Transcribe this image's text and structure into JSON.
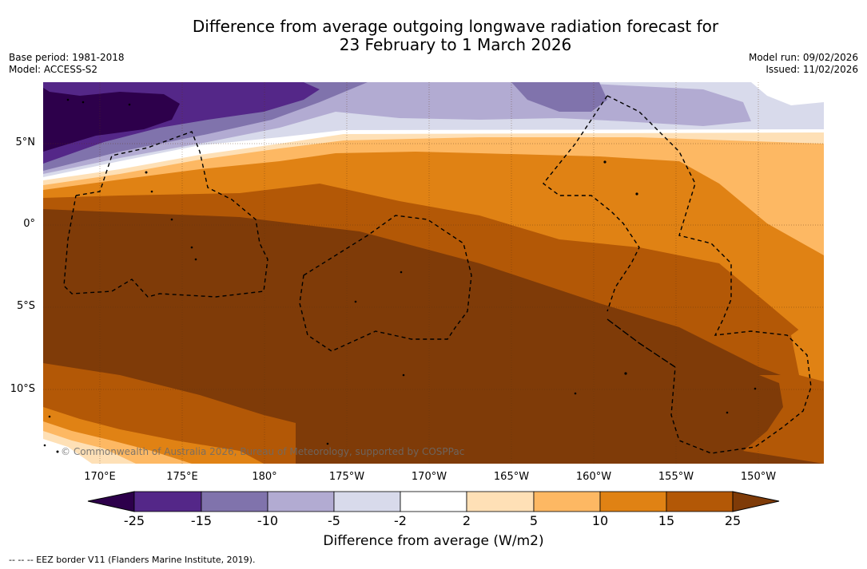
{
  "title": {
    "line1": "Difference from average outgoing longwave radiation forecast for",
    "line2": "23 February to 1 March 2026"
  },
  "meta": {
    "base_period": "Base period: 1981-2018",
    "model": "Model: ACCESS-S2",
    "model_run": "Model run: 09/02/2026",
    "issued": "Issued: 11/02/2026"
  },
  "map": {
    "lat_labels": [
      "5°N",
      "0°",
      "5°S",
      "10°S"
    ],
    "lon_labels": [
      "170°E",
      "175°E",
      "180°",
      "175°W",
      "170°W",
      "165°W",
      "160°W",
      "155°W",
      "150°W"
    ],
    "copyright": "© Commonwealth of Australia 2026, Bureau of Meteorology, supported by COSPPac"
  },
  "colorbar": {
    "title": "Difference from average (W/m2)",
    "ticks": [
      "-25",
      "-15",
      "-10",
      "-5",
      "-2",
      "2",
      "5",
      "10",
      "15",
      "25"
    ],
    "colors": [
      "#2d004b",
      "#542788",
      "#8073ac",
      "#b2abd2",
      "#d8daeb",
      "#ffffff",
      "#fee0b6",
      "#fdb863",
      "#e08214",
      "#b35806",
      "#7f3b08"
    ]
  },
  "footnote": "--  --  -- EEZ border V11 (Flanders Marine Institute, 2019)."
}
